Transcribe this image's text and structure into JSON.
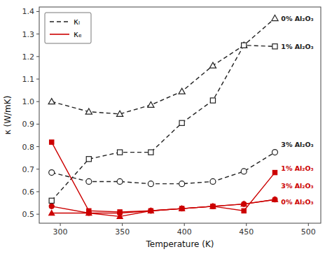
{
  "chart_data": {
    "type": "line",
    "xlabel": "Temperature (K)",
    "ylabel": "κ (W/mK)",
    "xlim": [
      283,
      510
    ],
    "ylim": [
      0.46,
      1.42
    ],
    "xticks": [
      300,
      350,
      400,
      450,
      500
    ],
    "yticks": [
      0.5,
      0.6,
      0.7,
      0.8,
      0.9,
      {
        "value": 1.0,
        "label": "1.0"
      },
      1.1,
      1.2,
      1.3,
      1.4
    ],
    "legend": "upper left",
    "series": [
      {
        "name": "κₗ",
        "color": "#222222",
        "line_style": "dashed",
        "marker": "open-triangle",
        "x": [
          293,
          323,
          348,
          373,
          398,
          423,
          448,
          473
        ],
        "values": [
          1.0,
          0.955,
          0.945,
          0.985,
          1.045,
          1.16,
          1.25,
          1.37
        ]
      },
      {
        "name": "κₗ",
        "color": "#222222",
        "line_style": "dashed",
        "marker": "open-square",
        "x": [
          293,
          323,
          348,
          373,
          398,
          423,
          448,
          473
        ],
        "values": [
          0.56,
          0.745,
          0.775,
          0.775,
          0.905,
          1.005,
          1.25,
          1.245
        ]
      },
      {
        "name": "κₗ",
        "color": "#222222",
        "line_style": "dashed",
        "marker": "open-circle",
        "x": [
          293,
          323,
          348,
          373,
          398,
          423,
          448,
          473
        ],
        "values": [
          0.685,
          0.645,
          0.645,
          0.635,
          0.635,
          0.645,
          0.69,
          0.775
        ]
      },
      {
        "name": "κₑ",
        "color": "#cc0000",
        "line_style": "solid",
        "marker": "circle",
        "x": [
          293,
          323,
          348,
          373,
          398,
          423,
          448,
          473
        ],
        "values": [
          0.535,
          0.505,
          0.505,
          0.515,
          0.525,
          0.535,
          0.545,
          0.565
        ]
      },
      {
        "name": "κₑ",
        "color": "#cc0000",
        "line_style": "solid",
        "marker": "square",
        "x": [
          293,
          323,
          348,
          373,
          398,
          423,
          448,
          473
        ],
        "values": [
          0.82,
          0.515,
          0.51,
          0.515,
          0.525,
          0.535,
          0.515,
          0.685
        ]
      },
      {
        "name": "κₑ",
        "color": "#cc0000",
        "line_style": "solid",
        "marker": "triangle",
        "x": [
          293,
          323,
          348,
          373,
          398,
          423,
          448,
          473
        ],
        "values": [
          0.505,
          0.505,
          0.49,
          0.515,
          0.525,
          0.535,
          0.545,
          0.565
        ]
      }
    ],
    "annotations": [
      {
        "text": "0% Al₂O₃",
        "x": 478,
        "y": 1.37,
        "color": "#222222"
      },
      {
        "text": "1% Al₂O₃",
        "x": 478,
        "y": 1.245,
        "color": "#222222"
      },
      {
        "text": "3% Al₂O₃",
        "x": 478,
        "y": 0.81,
        "color": "#222222"
      },
      {
        "text": "1% Al₂O₃",
        "x": 478,
        "y": 0.705,
        "color": "#cc0000"
      },
      {
        "text": "3% Al₂O₃",
        "x": 478,
        "y": 0.625,
        "color": "#cc0000"
      },
      {
        "text": "0% Al₂O₃",
        "x": 478,
        "y": 0.555,
        "color": "#cc0000"
      }
    ]
  }
}
